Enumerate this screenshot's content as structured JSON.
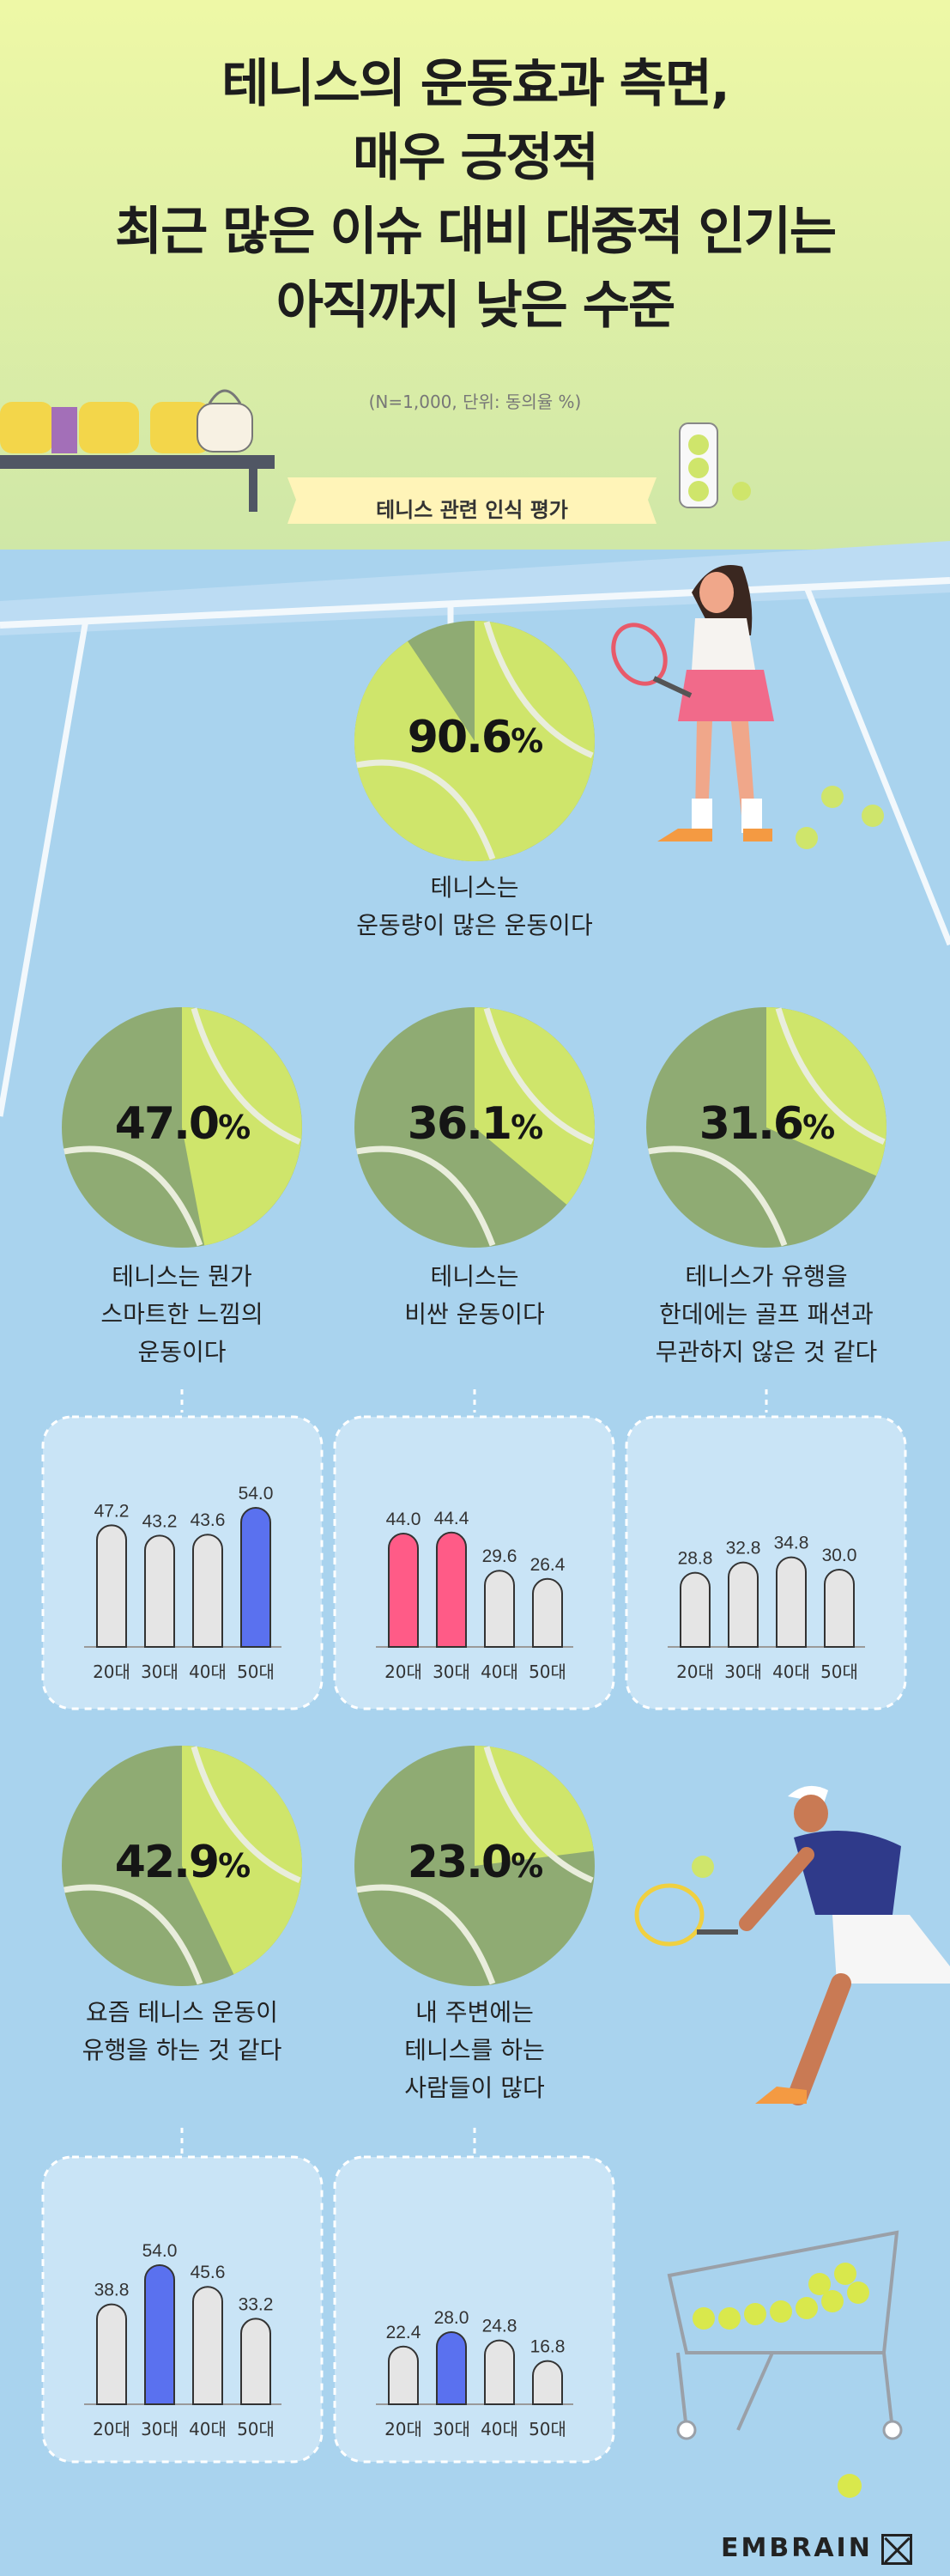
{
  "title_lines": [
    "테니스의 운동효과 측면,",
    "매우 긍정적",
    "최근 많은 이슈 대비 대중적 인기는",
    "아직까지 낮은 수준"
  ],
  "note": "(N=1,000, 단위: 동의율 %)",
  "banner": "테니스 관련 인식 평가",
  "brand": "EMBRAIN",
  "colors": {
    "sky": "#a7d3ef",
    "court": "#8ec0e4",
    "grass": "#cfe6a1",
    "title_bg": "#e7f6a4",
    "ball": "#cfe56b",
    "ball_dark": "#8fab73",
    "bar_grey": "#e5e5e5",
    "bar_blue": "#5a71ef",
    "bar_pink": "#ff5b87",
    "banner": "#fff4b8"
  },
  "chart_data": [
    {
      "type": "pie",
      "value": 90.6,
      "value_label": "90.6",
      "unit": "%",
      "label_lines": [
        "테니스는",
        "운동량이 많은 운동이다"
      ]
    },
    {
      "type": "pie",
      "value": 47.0,
      "value_label": "47.0",
      "unit": "%",
      "label_lines": [
        "테니스는 뭔가",
        "스마트한 느낌의",
        "운동이다"
      ]
    },
    {
      "type": "pie",
      "value": 36.1,
      "value_label": "36.1",
      "unit": "%",
      "label_lines": [
        "테니스는",
        "비싼 운동이다"
      ]
    },
    {
      "type": "pie",
      "value": 31.6,
      "value_label": "31.6",
      "unit": "%",
      "label_lines": [
        "테니스가 유행을",
        "한데에는 골프 패션과",
        "무관하지 않은 것 같다"
      ]
    },
    {
      "type": "pie",
      "value": 42.9,
      "value_label": "42.9",
      "unit": "%",
      "label_lines": [
        "요즘 테니스 운동이",
        "유행을 하는 것 같다"
      ]
    },
    {
      "type": "pie",
      "value": 23.0,
      "value_label": "23.0",
      "unit": "%",
      "label_lines": [
        "내 주변에는",
        "테니스를 하는",
        "사람들이 많다"
      ]
    },
    {
      "type": "bar",
      "for": "47.0",
      "categories": [
        "20대",
        "30대",
        "40대",
        "50대"
      ],
      "values": [
        47.2,
        43.2,
        43.6,
        54.0
      ],
      "value_labels": [
        "47.2",
        "43.2",
        "43.6",
        "54.0"
      ],
      "highlight": [
        "grey",
        "grey",
        "grey",
        "blue"
      ],
      "ylim": [
        0,
        60
      ]
    },
    {
      "type": "bar",
      "for": "36.1",
      "categories": [
        "20대",
        "30대",
        "40대",
        "50대"
      ],
      "values": [
        44.0,
        44.4,
        29.6,
        26.4
      ],
      "value_labels": [
        "44.0",
        "44.4",
        "29.6",
        "26.4"
      ],
      "highlight": [
        "pink",
        "pink",
        "grey",
        "grey"
      ],
      "ylim": [
        0,
        60
      ]
    },
    {
      "type": "bar",
      "for": "31.6",
      "categories": [
        "20대",
        "30대",
        "40대",
        "50대"
      ],
      "values": [
        28.8,
        32.8,
        34.8,
        30.0
      ],
      "value_labels": [
        "28.8",
        "32.8",
        "34.8",
        "30.0"
      ],
      "highlight": [
        "grey",
        "grey",
        "grey",
        "grey"
      ],
      "ylim": [
        0,
        60
      ]
    },
    {
      "type": "bar",
      "for": "42.9",
      "categories": [
        "20대",
        "30대",
        "40대",
        "50대"
      ],
      "values": [
        38.8,
        54.0,
        45.6,
        33.2
      ],
      "value_labels": [
        "38.8",
        "54.0",
        "45.6",
        "33.2"
      ],
      "highlight": [
        "grey",
        "blue",
        "grey",
        "grey"
      ],
      "ylim": [
        0,
        60
      ]
    },
    {
      "type": "bar",
      "for": "23.0",
      "categories": [
        "20대",
        "30대",
        "40대",
        "50대"
      ],
      "values": [
        22.4,
        28.0,
        24.8,
        16.8
      ],
      "value_labels": [
        "22.4",
        "28.0",
        "24.8",
        "16.8"
      ],
      "highlight": [
        "grey",
        "blue",
        "grey",
        "grey"
      ],
      "ylim": [
        0,
        60
      ]
    }
  ]
}
